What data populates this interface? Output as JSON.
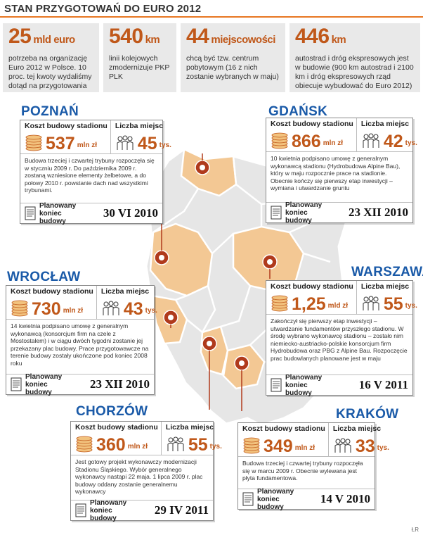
{
  "title": "STAN PRZYGOTOWAŃ DO EURO 2012",
  "stats": [
    {
      "value": "25",
      "unit": "mld euro",
      "desc": "potrzeba na organizację Euro 2012 w Polsce. 10 proc. tej kwoty wydaliśmy dotąd na przygotowania"
    },
    {
      "value": "540",
      "unit": "km",
      "desc": "linii kolejowych zmodernizuje PKP PLK"
    },
    {
      "value": "44",
      "unit": "miejscowości",
      "desc": "chcą być tzw. centrum pobytowym (16 z nich zostanie wybranych w maju)"
    },
    {
      "value": "446",
      "unit": "km",
      "desc": "autostrad i dróg ekspresowych jest w budowie (900 km autostrad i 2100 km i dróg ekspresowych rząd obiecuje wybudować do Euro 2012)"
    }
  ],
  "labels": {
    "cost": "Koszt budowy stadionu",
    "seats": "Liczba miejsc",
    "planned": "Planowany koniec budowy"
  },
  "cities": [
    {
      "name": "POZNAŃ",
      "cost": "537",
      "cost_unit": "mln zł",
      "seats": "45",
      "seats_unit": "tys.",
      "desc": "Budowa trzeciej i czwartej trybuny rozpoczęła się w styczniu 2009 r. Do października 2009 r. zostaną wzniesione elementy żelbetowe, a do połowy 2010 r. powstanie dach nad wszystkimi trybunami.",
      "date": "30 VI 2010"
    },
    {
      "name": "GDAŃSK",
      "cost": "866",
      "cost_unit": "mln zł",
      "seats": "42",
      "seats_unit": "tys.",
      "desc": "10 kwietnia podpisano umowę z generalnym wykonawcą stadionu (Hydrobudowa Alpine Bau), który w maju rozpocznie prace na stadionie. Obecnie kończy się pierwszy etap inwestycji – wymiana i utwardzanie gruntu",
      "date": "23 XII 2010"
    },
    {
      "name": "WROCŁAW",
      "cost": "730",
      "cost_unit": "mln zł",
      "seats": "43",
      "seats_unit": "tys.",
      "desc": "14 kwietnia podpisano umowę z generalnym wykonawcą (konsorcjum firm na czele z Mostostalem) i w ciągu dwóch tygodni zostanie jej przekazany plac budowy. Prace przygotowawcze na terenie budowy zostały ukończone pod koniec 2008 roku",
      "date": "23 XII 2010"
    },
    {
      "name": "WARSZAWA",
      "cost": "1,25",
      "cost_unit": "mld zł",
      "seats": "55",
      "seats_unit": "tys.",
      "desc": "Zakończył się pierwszy etap inwestycji – utwardzanie fundamentów przyszłego stadionu. W środę wybrano wykonawcę stadionu – zostało nim niemiecko-austriacko-polskie konsorcjum firm Hydrobudowa oraz PBG z Alpine Bau. Rozpoczęcie prac budowlanych planowane jest w maju",
      "date": "16 V 2011"
    },
    {
      "name": "CHORZÓW",
      "cost": "360",
      "cost_unit": "mln zł",
      "seats": "55",
      "seats_unit": "tys.",
      "desc": "Jest gotowy projekt wykonawczy modernizacji Stadionu Śląskiego. Wybór generalnego wykonawcy nastąpi 22 maja. 1 lipca 2009 r. plac budowy oddany zostanie generalnemu wykonawcy",
      "date": "29 IV 2011"
    },
    {
      "name": "KRAKÓW",
      "cost": "349",
      "cost_unit": "mln zł",
      "seats": "33",
      "seats_unit": "tys.",
      "desc": "Budowa trzeciej i czwartej trybuny rozpoczęła się w marcu 2009 r. Obecnie wylewana jest płyta fundamentowa.",
      "date": "14 V 2010"
    }
  ],
  "credit": "ŁR",
  "colors": {
    "accent": "#c0581a",
    "city": "#1a5aa8",
    "stat_bg": "#e9e9e9",
    "map_fill": "#e6e6e6",
    "map_highlight": "#f3c894"
  }
}
